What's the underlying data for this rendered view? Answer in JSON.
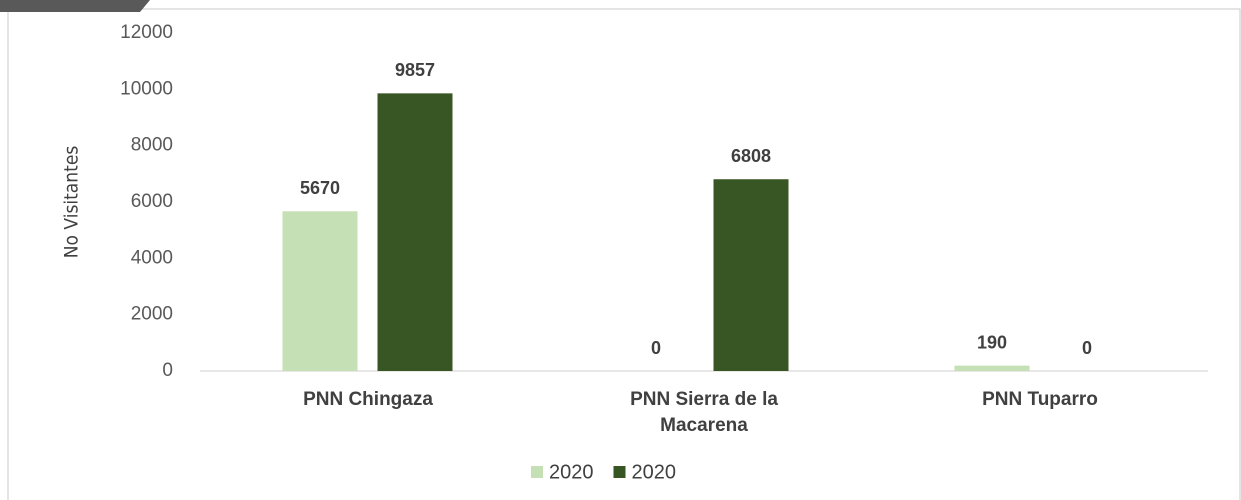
{
  "chart_data": {
    "type": "bar",
    "y_label": "No Visitantes",
    "categories": [
      "PNN Chingaza",
      "PNN Sierra de la Macarena",
      "PNN Tuparro"
    ],
    "series": [
      {
        "name": "2020",
        "color": "#c5e0b4",
        "values": [
          5670,
          0,
          190
        ]
      },
      {
        "name": "2020",
        "color": "#375623",
        "values": [
          9857,
          6808,
          0
        ]
      }
    ],
    "ylim": [
      0,
      12000
    ],
    "yticks": [
      0,
      2000,
      4000,
      6000,
      8000,
      10000,
      12000
    ],
    "legend": "bottom"
  }
}
